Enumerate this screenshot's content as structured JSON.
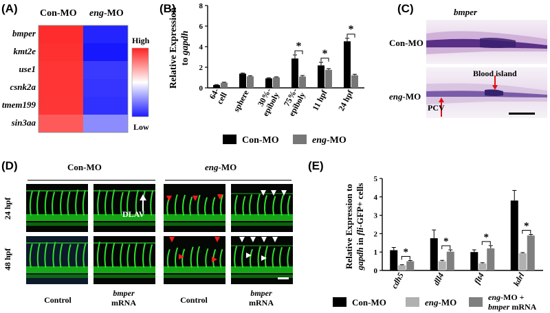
{
  "panel_labels": {
    "a": "(A)",
    "b": "(B)",
    "c": "(C)",
    "d": "(D)",
    "e": "(E)"
  },
  "heatmap": {
    "col_con": "Con-MO",
    "col_eng_gene": "eng",
    "col_eng_suffix": "-MO",
    "genes": [
      "bmper",
      "kmt2e",
      "use1",
      "csnk2a",
      "tmem199",
      "sin3aa"
    ],
    "legend_high": "High",
    "legend_low": "Low",
    "colors": {
      "high": "#ff2a2a",
      "mid": "#ffffff",
      "low": "#1a1aff"
    }
  },
  "chart_data": [
    {
      "type": "bar",
      "ylabel_line1": "Relative Expression",
      "ylabel_line2_prefix": "to ",
      "ylabel_line2_gene": "gapdh",
      "categories": [
        "64-cell",
        "sphere",
        "30%-epiboly",
        "75%-epiboly",
        "11 hpf",
        "24 hpf"
      ],
      "ylim": [
        0,
        8
      ],
      "yticks": [
        "0",
        "2",
        "4",
        "6",
        "8"
      ],
      "series": [
        {
          "name": "Con-MO",
          "color": "#000000",
          "values": [
            0.28,
            1.38,
            0.92,
            2.85,
            2.18,
            4.52
          ]
        },
        {
          "name": "eng-MO",
          "color": "#777777",
          "values": [
            0.5,
            1.12,
            1.02,
            1.1,
            1.75,
            1.22
          ]
        }
      ],
      "errors": [
        [
          0.04,
          0.06,
          0.06,
          0.35,
          0.3,
          0.3
        ],
        [
          0.05,
          0.06,
          0.05,
          0.1,
          0.12,
          0.1
        ]
      ],
      "significant": [
        "75%-epiboly",
        "11 hpf",
        "24 hpf"
      ],
      "sig_mark": "*",
      "legend": {
        "con": "Con-MO",
        "eng_gene": "eng",
        "eng_suffix": "-MO"
      }
    },
    {
      "type": "bar",
      "ylabel_line1": "Relative Expression to",
      "ylabel_line2_gene1": "gapdh",
      "ylabel_line2_mid": " in ",
      "ylabel_line2_gene2": "fli",
      "ylabel_line2_suffix": "-GFP+ cells",
      "categories": [
        "cdh5",
        "dll4",
        "flt4",
        "kdrl"
      ],
      "ylim": [
        0,
        5
      ],
      "yticks": [
        "0",
        "1",
        "2",
        "3",
        "4",
        "5"
      ],
      "series": [
        {
          "name": "Con-MO",
          "color": "#000000",
          "values": [
            1.1,
            1.75,
            1.0,
            3.8
          ]
        },
        {
          "name": "eng-MO",
          "color": "#b0b0b0",
          "values": [
            0.28,
            0.5,
            0.38,
            0.93
          ]
        },
        {
          "name": "eng-MO + bmper mRNA",
          "color": "#7f7f7f",
          "values": [
            0.5,
            1.02,
            1.2,
            1.9
          ]
        }
      ],
      "errors": [
        [
          0.15,
          0.45,
          0.12,
          0.55
        ],
        [
          0.03,
          0.05,
          0.04,
          0.04
        ],
        [
          0.04,
          0.1,
          0.15,
          0.06
        ]
      ],
      "sig_mark": "*",
      "legend": {
        "con": "Con-MO",
        "eng_gene": "eng",
        "eng_suffix": "-MO",
        "combo_line1_gene": "eng",
        "combo_line1_suffix": "-MO +",
        "combo_line2_gene": "bmper",
        "combo_line2_suffix": " mRNA"
      }
    }
  ],
  "insitu": {
    "title": "bmper",
    "row1_label": "Con-MO",
    "row2_gene": "eng",
    "row2_suffix": "-MO",
    "annot_blood_island": "Blood island",
    "annot_pcv": "PCV"
  },
  "vasculature": {
    "group_con": "Con-MO",
    "group_eng_gene": "eng",
    "group_eng_suffix": "-MO",
    "row1": "24 hpf",
    "row2": "48 hpf",
    "dlav": "DLAV",
    "col_labels": [
      {
        "l1": "Control",
        "l2": ""
      },
      {
        "l1": "bmper",
        "l2": "mRNA"
      },
      {
        "l1": "Control",
        "l2": ""
      },
      {
        "l1": "bmper",
        "l2": "mRNA"
      }
    ]
  }
}
